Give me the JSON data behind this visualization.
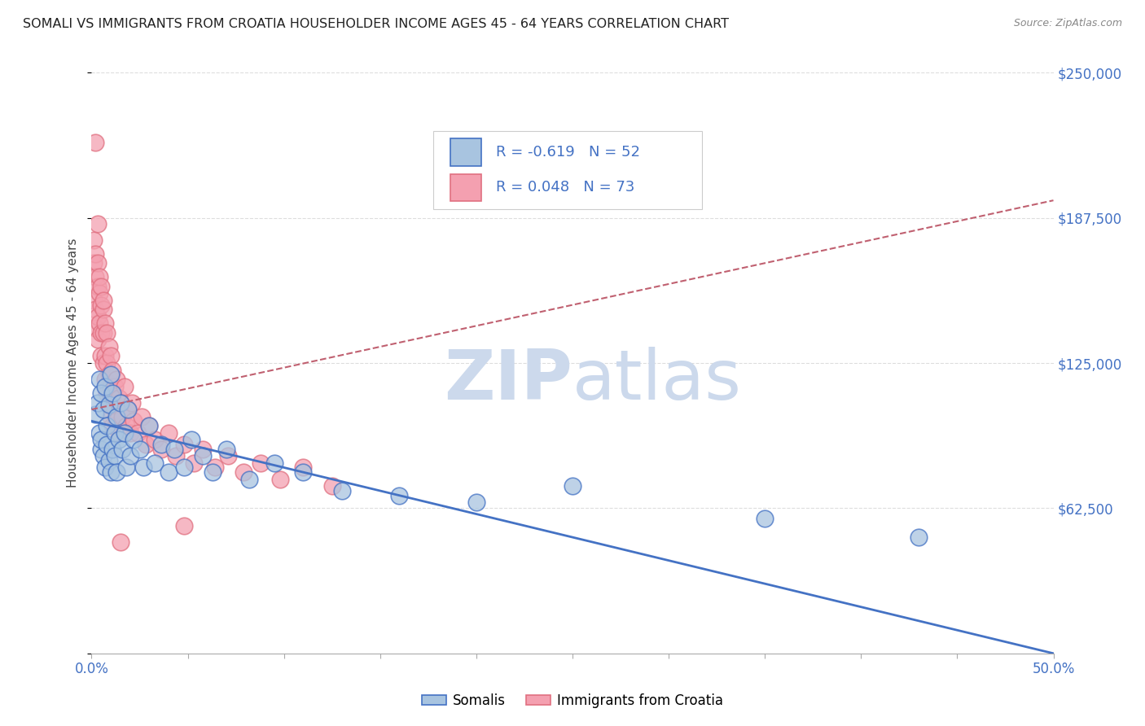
{
  "title": "SOMALI VS IMMIGRANTS FROM CROATIA HOUSEHOLDER INCOME AGES 45 - 64 YEARS CORRELATION CHART",
  "source": "Source: ZipAtlas.com",
  "ylabel": "Householder Income Ages 45 - 64 years",
  "legend_label1": "Somalis",
  "legend_label2": "Immigrants from Croatia",
  "R1": -0.619,
  "N1": 52,
  "R2": 0.048,
  "N2": 73,
  "color_somali_fill": "#a8c4e0",
  "color_croatia_fill": "#f4a0b0",
  "color_somali_edge": "#4472c4",
  "color_croatia_edge": "#e07080",
  "color_somali_line": "#4472c4",
  "color_croatia_line": "#c06070",
  "watermark_color": "#ccd9ec",
  "xmin": 0.0,
  "xmax": 0.5,
  "ymin": 0,
  "ymax": 250000,
  "yticks": [
    0,
    62500,
    125000,
    187500,
    250000
  ],
  "ytick_labels": [
    "",
    "$62,500",
    "$125,000",
    "$187,500",
    "$250,000"
  ],
  "xticks": [
    0.0,
    0.05,
    0.1,
    0.15,
    0.2,
    0.25,
    0.3,
    0.35,
    0.4,
    0.45,
    0.5
  ],
  "xtick_labels_show": [
    "0.0%",
    "",
    "",
    "",
    "",
    "",
    "",
    "",
    "",
    "",
    "50.0%"
  ],
  "bg_color": "#ffffff",
  "grid_color": "#dddddd",
  "tick_color": "#4472c4",
  "title_color": "#222222",
  "ylabel_color": "#444444",
  "somali_x": [
    0.002,
    0.003,
    0.004,
    0.004,
    0.005,
    0.005,
    0.005,
    0.006,
    0.006,
    0.007,
    0.007,
    0.008,
    0.008,
    0.009,
    0.009,
    0.01,
    0.01,
    0.011,
    0.011,
    0.012,
    0.012,
    0.013,
    0.013,
    0.014,
    0.015,
    0.016,
    0.017,
    0.018,
    0.019,
    0.02,
    0.022,
    0.025,
    0.027,
    0.03,
    0.033,
    0.036,
    0.04,
    0.043,
    0.048,
    0.052,
    0.058,
    0.063,
    0.07,
    0.082,
    0.095,
    0.11,
    0.13,
    0.16,
    0.2,
    0.25,
    0.35,
    0.43
  ],
  "somali_y": [
    103000,
    108000,
    95000,
    118000,
    88000,
    112000,
    92000,
    105000,
    85000,
    115000,
    80000,
    98000,
    90000,
    107000,
    83000,
    120000,
    78000,
    112000,
    88000,
    95000,
    85000,
    102000,
    78000,
    92000,
    108000,
    88000,
    95000,
    80000,
    105000,
    85000,
    92000,
    88000,
    80000,
    98000,
    82000,
    90000,
    78000,
    88000,
    80000,
    92000,
    85000,
    78000,
    88000,
    75000,
    82000,
    78000,
    70000,
    68000,
    65000,
    72000,
    58000,
    50000
  ],
  "croatia_x": [
    0.001,
    0.001,
    0.001,
    0.002,
    0.002,
    0.002,
    0.002,
    0.003,
    0.003,
    0.003,
    0.003,
    0.004,
    0.004,
    0.004,
    0.005,
    0.005,
    0.005,
    0.005,
    0.006,
    0.006,
    0.006,
    0.006,
    0.007,
    0.007,
    0.007,
    0.008,
    0.008,
    0.008,
    0.009,
    0.009,
    0.009,
    0.01,
    0.01,
    0.01,
    0.011,
    0.011,
    0.011,
    0.012,
    0.012,
    0.013,
    0.013,
    0.014,
    0.014,
    0.015,
    0.016,
    0.017,
    0.018,
    0.019,
    0.02,
    0.021,
    0.022,
    0.024,
    0.026,
    0.028,
    0.03,
    0.033,
    0.036,
    0.04,
    0.044,
    0.048,
    0.053,
    0.058,
    0.064,
    0.071,
    0.079,
    0.088,
    0.098,
    0.11,
    0.125,
    0.015,
    0.002,
    0.003,
    0.048
  ],
  "croatia_y": [
    168000,
    152000,
    178000,
    162000,
    148000,
    172000,
    140000,
    158000,
    145000,
    168000,
    135000,
    155000,
    142000,
    162000,
    150000,
    138000,
    158000,
    128000,
    148000,
    138000,
    125000,
    152000,
    142000,
    128000,
    118000,
    138000,
    125000,
    112000,
    132000,
    120000,
    108000,
    128000,
    115000,
    102000,
    122000,
    110000,
    98000,
    115000,
    105000,
    118000,
    100000,
    110000,
    95000,
    108000,
    102000,
    115000,
    98000,
    105000,
    95000,
    108000,
    100000,
    95000,
    102000,
    90000,
    98000,
    92000,
    88000,
    95000,
    85000,
    90000,
    82000,
    88000,
    80000,
    85000,
    78000,
    82000,
    75000,
    80000,
    72000,
    48000,
    220000,
    185000,
    55000
  ],
  "somali_line_x0": 0.0,
  "somali_line_x1": 0.5,
  "somali_line_y0": 100000,
  "somali_line_y1": 0,
  "croatia_line_x0": 0.0,
  "croatia_line_x1": 0.5,
  "croatia_line_y0": 105000,
  "croatia_line_y1": 195000
}
